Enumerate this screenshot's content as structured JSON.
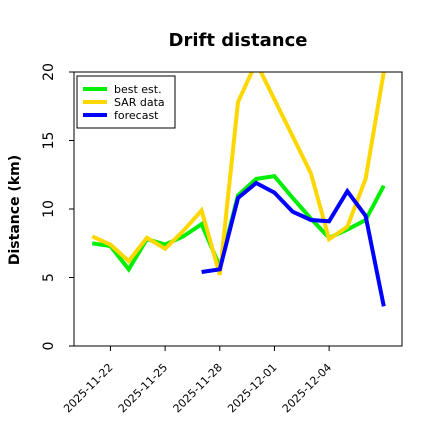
{
  "chart_data": {
    "type": "line",
    "title": "Drift distance",
    "xlabel": "",
    "ylabel": "Distance (km)",
    "ylim": [
      0,
      20
    ],
    "xlim": [
      "2025-11-20",
      "2025-12-08"
    ],
    "y_ticks": [
      0,
      5,
      10,
      15,
      20
    ],
    "x_ticks": [
      "2025-11-22",
      "2025-11-25",
      "2025-11-28",
      "2025-12-01",
      "2025-12-04"
    ],
    "legend_position": "top-left",
    "grid": false,
    "series": [
      {
        "name": "best est.",
        "color": "#00ee00",
        "points": [
          [
            "2025-11-21",
            7.5
          ],
          [
            "2025-11-22",
            7.3
          ],
          [
            "2025-11-23",
            5.6
          ],
          [
            "2025-11-24",
            7.8
          ],
          [
            "2025-11-25",
            7.4
          ],
          [
            "2025-11-26",
            8.0
          ],
          [
            "2025-11-27",
            8.9
          ],
          [
            "2025-11-28",
            5.8
          ],
          [
            "2025-11-29",
            11.0
          ],
          [
            "2025-11-30",
            12.2
          ],
          [
            "2025-12-01",
            12.4
          ],
          [
            "2025-12-02",
            10.8
          ],
          [
            "2025-12-03",
            9.3
          ],
          [
            "2025-12-04",
            7.9
          ],
          [
            "2025-12-05",
            8.5
          ],
          [
            "2025-12-06",
            9.2
          ],
          [
            "2025-12-07",
            11.7
          ]
        ]
      },
      {
        "name": "SAR data",
        "color": "#ffd700",
        "points": [
          [
            "2025-11-21",
            8.0
          ],
          [
            "2025-11-22",
            7.4
          ],
          [
            "2025-11-23",
            6.2
          ],
          [
            "2025-11-24",
            7.9
          ],
          [
            "2025-11-25",
            7.1
          ],
          [
            "2025-11-26",
            8.4
          ],
          [
            "2025-11-27",
            9.9
          ],
          [
            "2025-11-28",
            5.2
          ],
          [
            "2025-11-29",
            17.8
          ],
          [
            "2025-11-30",
            20.7
          ],
          [
            "2025-12-01",
            18.0
          ],
          [
            "2025-12-02",
            15.3
          ],
          [
            "2025-12-03",
            12.6
          ],
          [
            "2025-12-04",
            7.8
          ],
          [
            "2025-12-05",
            8.7
          ],
          [
            "2025-12-06",
            12.2
          ],
          [
            "2025-12-07",
            20.0
          ]
        ]
      },
      {
        "name": "forecast",
        "color": "#0000ff",
        "points": [
          [
            "2025-11-27",
            5.4
          ],
          [
            "2025-11-28",
            5.6
          ],
          [
            "2025-11-29",
            10.8
          ],
          [
            "2025-11-30",
            11.9
          ],
          [
            "2025-12-01",
            11.2
          ],
          [
            "2025-12-02",
            9.8
          ],
          [
            "2025-12-03",
            9.2
          ],
          [
            "2025-12-04",
            9.1
          ],
          [
            "2025-12-05",
            11.3
          ],
          [
            "2025-12-06",
            9.5
          ],
          [
            "2025-12-07",
            2.9
          ]
        ]
      }
    ]
  }
}
